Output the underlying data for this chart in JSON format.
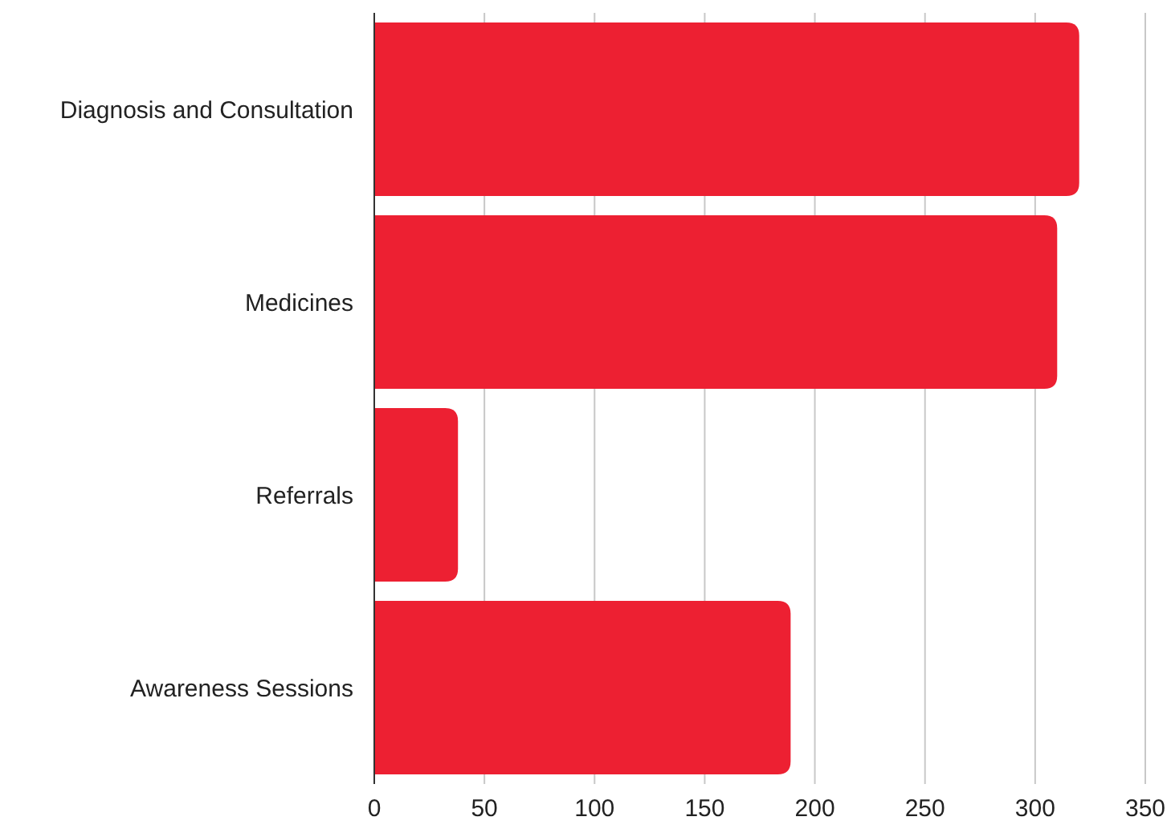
{
  "chart_data": {
    "type": "bar",
    "orientation": "horizontal",
    "categories": [
      "Diagnosis and Consultation",
      "Medicines",
      "Referrals",
      "Awareness Sessions"
    ],
    "values": [
      320,
      310,
      38,
      189
    ],
    "color": "#ed2032",
    "xlim": [
      0,
      350
    ],
    "xticks": [
      0,
      50,
      100,
      150,
      200,
      250,
      300,
      350
    ],
    "grid": "x"
  }
}
